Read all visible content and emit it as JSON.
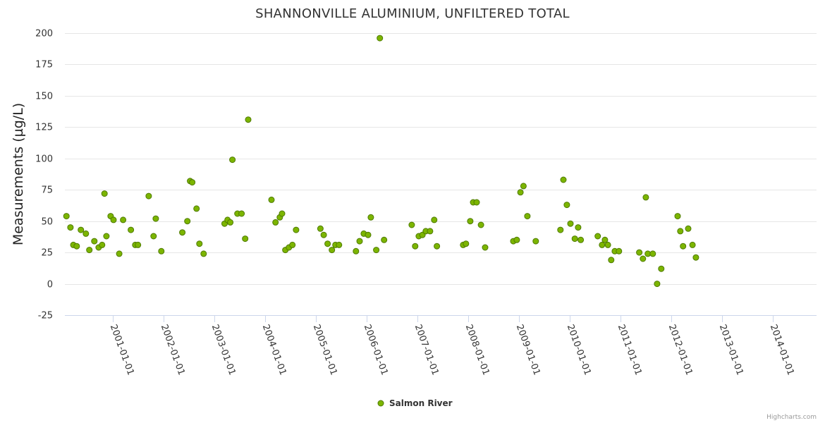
{
  "chart_data": {
    "type": "scatter",
    "title": "SHANNONVILLE ALUMINIUM, UNFILTERED TOTAL",
    "ylabel": "Measurements (µg/L)",
    "xlabel": "",
    "ylim": [
      -25,
      200
    ],
    "yticks": [
      -25,
      0,
      25,
      50,
      75,
      100,
      125,
      150,
      175,
      200
    ],
    "xlim": [
      "2000-01-21",
      "2014-11-10"
    ],
    "xtick_labels": [
      "2001-01-01",
      "2002-01-01",
      "2003-01-01",
      "2004-01-01",
      "2005-01-01",
      "2006-01-01",
      "2007-01-01",
      "2008-01-01",
      "2009-01-01",
      "2010-01-01",
      "2011-01-01",
      "2012-01-01",
      "2013-01-01",
      "2014-01-01"
    ],
    "grid": true,
    "legend_position": "bottom-center",
    "credits": "Highcharts.com",
    "colors": {
      "marker_fill": "#7cb500",
      "marker_stroke": "#4e7a00",
      "grid": "#e6e6e6",
      "axis": "#ccd6eb"
    },
    "series": [
      {
        "name": "Salmon River",
        "points": [
          [
            "2000-02-01",
            54
          ],
          [
            "2000-03-01",
            45
          ],
          [
            "2000-03-22",
            31
          ],
          [
            "2000-04-15",
            30
          ],
          [
            "2000-05-15",
            43
          ],
          [
            "2000-06-20",
            40
          ],
          [
            "2000-07-15",
            27
          ],
          [
            "2000-08-20",
            34
          ],
          [
            "2000-09-20",
            29
          ],
          [
            "2000-10-15",
            31
          ],
          [
            "2000-11-01",
            72
          ],
          [
            "2000-11-15",
            38
          ],
          [
            "2000-12-15",
            54
          ],
          [
            "2001-01-05",
            51
          ],
          [
            "2001-02-15",
            24
          ],
          [
            "2001-03-15",
            51
          ],
          [
            "2001-05-10",
            43
          ],
          [
            "2001-06-10",
            31
          ],
          [
            "2001-06-30",
            31
          ],
          [
            "2001-09-15",
            70
          ],
          [
            "2001-10-20",
            38
          ],
          [
            "2001-11-05",
            52
          ],
          [
            "2001-12-15",
            26
          ],
          [
            "2002-05-15",
            41
          ],
          [
            "2002-06-20",
            50
          ],
          [
            "2002-07-10",
            82
          ],
          [
            "2002-07-25",
            81
          ],
          [
            "2002-08-25",
            60
          ],
          [
            "2002-09-15",
            32
          ],
          [
            "2002-10-15",
            24
          ],
          [
            "2003-03-15",
            48
          ],
          [
            "2003-04-05",
            51
          ],
          [
            "2003-04-25",
            49
          ],
          [
            "2003-05-10",
            99
          ],
          [
            "2003-06-15",
            56
          ],
          [
            "2003-07-15",
            56
          ],
          [
            "2003-08-10",
            36
          ],
          [
            "2003-09-01",
            131
          ],
          [
            "2004-02-15",
            67
          ],
          [
            "2004-03-15",
            49
          ],
          [
            "2004-04-15",
            53
          ],
          [
            "2004-05-01",
            56
          ],
          [
            "2004-05-25",
            27
          ],
          [
            "2004-06-20",
            29
          ],
          [
            "2004-07-15",
            31
          ],
          [
            "2004-08-10",
            43
          ],
          [
            "2005-02-01",
            44
          ],
          [
            "2005-02-25",
            39
          ],
          [
            "2005-03-25",
            32
          ],
          [
            "2005-04-25",
            27
          ],
          [
            "2005-05-20",
            31
          ],
          [
            "2005-06-15",
            31
          ],
          [
            "2005-10-15",
            26
          ],
          [
            "2005-11-10",
            34
          ],
          [
            "2005-12-10",
            40
          ],
          [
            "2006-01-10",
            39
          ],
          [
            "2006-01-30",
            53
          ],
          [
            "2006-03-10",
            27
          ],
          [
            "2006-04-05",
            196
          ],
          [
            "2006-05-05",
            35
          ],
          [
            "2006-11-20",
            47
          ],
          [
            "2006-12-15",
            30
          ],
          [
            "2007-01-10",
            38
          ],
          [
            "2007-02-05",
            39
          ],
          [
            "2007-03-01",
            42
          ],
          [
            "2007-04-01",
            42
          ],
          [
            "2007-05-01",
            51
          ],
          [
            "2007-05-20",
            30
          ],
          [
            "2007-11-25",
            31
          ],
          [
            "2007-12-15",
            32
          ],
          [
            "2008-01-15",
            50
          ],
          [
            "2008-02-05",
            65
          ],
          [
            "2008-03-01",
            65
          ],
          [
            "2008-04-01",
            47
          ],
          [
            "2008-05-01",
            29
          ],
          [
            "2008-11-20",
            34
          ],
          [
            "2008-12-15",
            35
          ],
          [
            "2009-01-10",
            73
          ],
          [
            "2009-02-01",
            78
          ],
          [
            "2009-03-01",
            54
          ],
          [
            "2009-04-30",
            34
          ],
          [
            "2009-10-25",
            43
          ],
          [
            "2009-11-15",
            83
          ],
          [
            "2009-12-10",
            63
          ],
          [
            "2010-01-05",
            48
          ],
          [
            "2010-02-05",
            36
          ],
          [
            "2010-03-01",
            45
          ],
          [
            "2010-03-20",
            35
          ],
          [
            "2010-07-20",
            38
          ],
          [
            "2010-08-20",
            31
          ],
          [
            "2010-09-10",
            35
          ],
          [
            "2010-10-01",
            31
          ],
          [
            "2010-10-25",
            19
          ],
          [
            "2010-11-20",
            26
          ],
          [
            "2010-12-20",
            26
          ],
          [
            "2011-05-15",
            25
          ],
          [
            "2011-06-10",
            20
          ],
          [
            "2011-07-01",
            69
          ],
          [
            "2011-07-15",
            24
          ],
          [
            "2011-08-20",
            24
          ],
          [
            "2011-09-20",
            0
          ],
          [
            "2011-10-20",
            12
          ],
          [
            "2012-02-15",
            54
          ],
          [
            "2012-03-05",
            42
          ],
          [
            "2012-03-25",
            30
          ],
          [
            "2012-05-01",
            44
          ],
          [
            "2012-06-01",
            31
          ],
          [
            "2012-06-25",
            21
          ]
        ]
      }
    ]
  }
}
